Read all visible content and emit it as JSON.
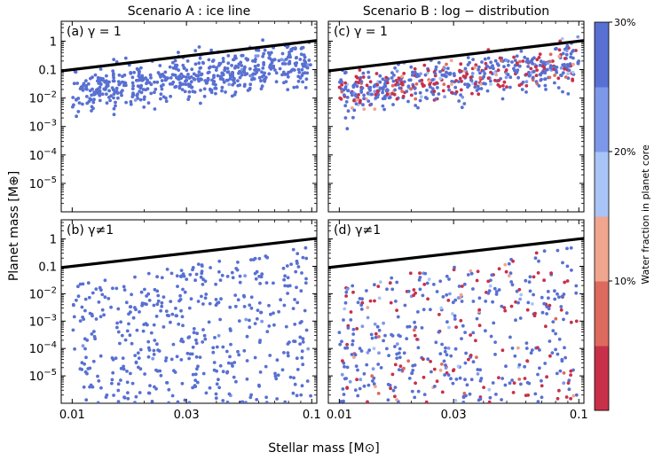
{
  "chart_data": {
    "type": "scatter",
    "x_scale": "log",
    "y_scale": "log",
    "xlim": [
      0.009,
      0.105
    ],
    "ylim_top": [
      1e-06,
      5
    ],
    "ylim_bottom": [
      1e-06,
      5
    ],
    "xticks": [
      0.01,
      0.03,
      0.1
    ],
    "xtick_labels": [
      "0.01",
      "0.03",
      "0.1"
    ],
    "yticks": [
      1e-05,
      0.0001,
      0.001,
      0.01,
      0.1,
      1
    ],
    "ytick_labels": [
      {
        "base": "10",
        "exp": "−5"
      },
      {
        "base": "10",
        "exp": "−4"
      },
      {
        "base": "10",
        "exp": "−3"
      },
      {
        "base": "10",
        "exp": "−2"
      },
      {
        "base": "0.1",
        "exp": ""
      },
      {
        "base": "1",
        "exp": ""
      }
    ],
    "column_titles": [
      "Scenario A :  ice line",
      "Scenario B :  log − distribution"
    ],
    "panels": [
      {
        "id": "a",
        "label": "(a) γ = 1",
        "scenario": "A",
        "gamma_one": true
      },
      {
        "id": "c",
        "label": "(c) γ = 1",
        "scenario": "B",
        "gamma_one": true
      },
      {
        "id": "b",
        "label": "(b) γ≠1",
        "scenario": "A",
        "gamma_one": false
      },
      {
        "id": "d",
        "label": "(d) γ≠1",
        "scenario": "B",
        "gamma_one": false
      }
    ],
    "reference_line": {
      "description": "ice line mass limit",
      "points": [
        [
          0.01,
          0.1
        ],
        [
          0.1,
          1.0
        ]
      ]
    },
    "xlabel": "Stellar mass [M⊙]",
    "ylabel": "Planet mass [M⊕]",
    "colorbar": {
      "label": "Water fraction in planet core",
      "range": [
        0,
        30
      ],
      "ticks": [
        10,
        20,
        30
      ],
      "tick_labels": [
        "10%",
        "20%",
        "30%"
      ],
      "colors": [
        "#c8304a",
        "#dd6a5e",
        "#f0a68e",
        "#a9c4f6",
        "#7e98e9",
        "#5870d2"
      ]
    },
    "point_counts": {
      "a": 560,
      "c": 560,
      "b": 470,
      "d": 470
    },
    "series_note": "Scenario A points are almost all water-rich (≈30%); Scenario B points are mixed water-rich (blue) and dry (red)."
  }
}
